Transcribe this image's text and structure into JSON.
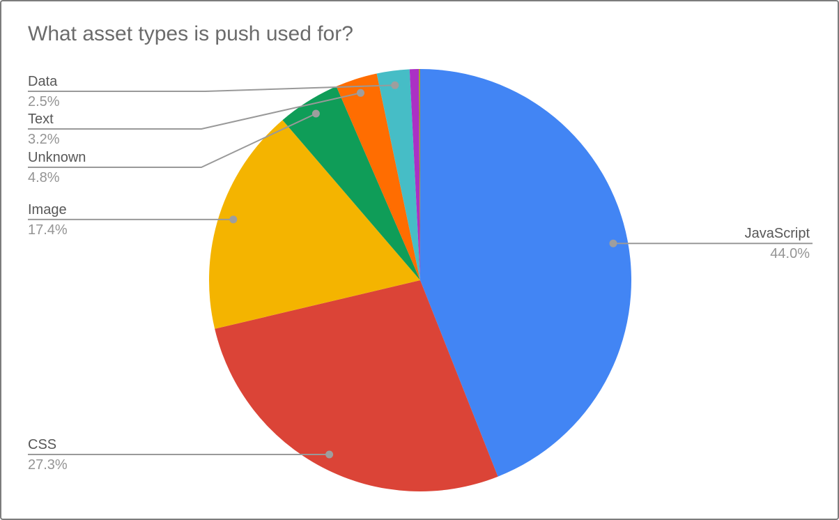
{
  "page": {
    "kind": "pie-chart-figure",
    "background_color": "#ffffff",
    "border_color": "#7c7c7c"
  },
  "chart_data": {
    "type": "pie",
    "title": "What asset types is push used for?",
    "legend_position": "labeled-callouts",
    "unit": "percent",
    "start_angle_deg": 0,
    "direction": "clockwise",
    "styles": {
      "title_color": "#6b6b6b",
      "label_color": "#575757",
      "percent_color": "#949494",
      "leader_line_color": "#999999",
      "callout_dot_color": "#9e9e9e"
    },
    "slices": [
      {
        "label": "JavaScript",
        "value": 44.0,
        "pct_label": "44.0%",
        "color": "#4285F4"
      },
      {
        "label": "CSS",
        "value": 27.3,
        "pct_label": "27.3%",
        "color": "#DB4437"
      },
      {
        "label": "Image",
        "value": 17.4,
        "pct_label": "17.4%",
        "color": "#F4B400"
      },
      {
        "label": "Unknown",
        "value": 4.8,
        "pct_label": "4.8%",
        "color": "#0F9D58"
      },
      {
        "label": "Text",
        "value": 3.2,
        "pct_label": "3.2%",
        "color": "#FF6D01"
      },
      {
        "label": "Data",
        "value": 2.5,
        "pct_label": "2.5%",
        "color": "#46BDC6"
      },
      {
        "label": "",
        "value": 0.7,
        "pct_label": "",
        "color": "#AB30C4"
      },
      {
        "label": "",
        "value": 0.1,
        "pct_label": "",
        "color": "#9E9D24"
      }
    ]
  }
}
